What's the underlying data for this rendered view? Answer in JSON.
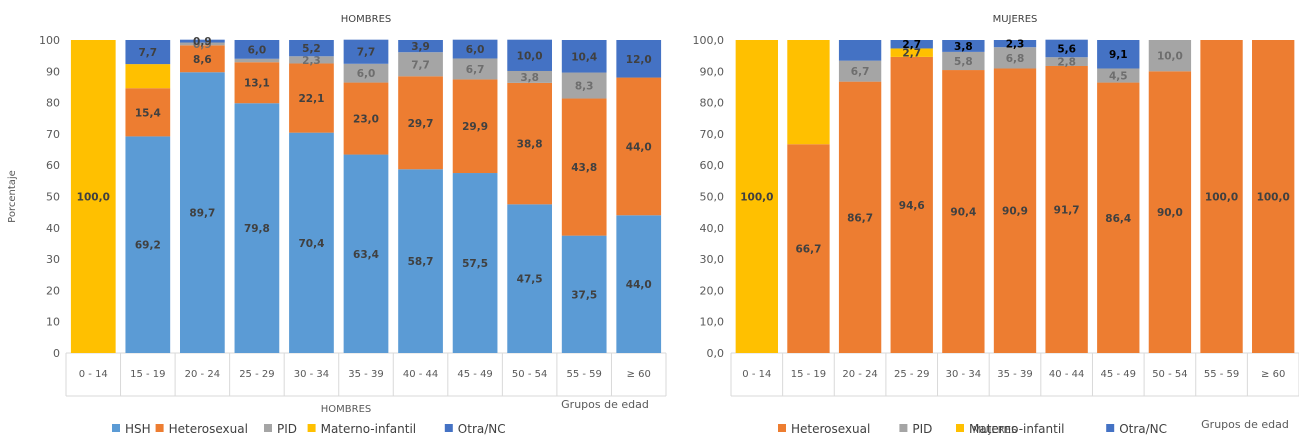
{
  "colors": {
    "HSH": "#5b9bd5",
    "Heterosexual": "#ed7d31",
    "PID": "#a5a5a5",
    "Materno-infantil": "#ffc000",
    "Otra/NC": "#4472c4"
  },
  "chart_data": [
    {
      "type": "bar",
      "stacked": true,
      "title": "HOMBRES",
      "ylabel": "Porcentaje",
      "xlabel": "HOMBRES",
      "x_group_label": "Grupos de edad",
      "ylim": [
        0,
        100
      ],
      "yticks": [
        "0",
        "10",
        "20",
        "30",
        "40",
        "50",
        "60",
        "70",
        "80",
        "90",
        "100"
      ],
      "legend_position": "bottom",
      "categories": [
        "0 - 14",
        "15 - 19",
        "20 - 24",
        "25 - 29",
        "30 - 34",
        "35 - 39",
        "40 - 44",
        "45 - 49",
        "50 - 54",
        "55 - 59",
        "≥ 60"
      ],
      "series": [
        {
          "name": "HSH",
          "values": [
            0,
            69.2,
            89.7,
            79.8,
            70.4,
            63.4,
            58.7,
            57.5,
            47.5,
            37.5,
            44.0
          ],
          "labels": [
            "",
            "69,2",
            "89,7",
            "79,8",
            "70,4",
            "63,4",
            "58,7",
            "57,5",
            "47,5",
            "37,5",
            "44,0"
          ]
        },
        {
          "name": "Heterosexual",
          "values": [
            0,
            15.4,
            8.6,
            13.1,
            22.1,
            23.0,
            29.7,
            29.9,
            38.8,
            43.8,
            44.0
          ],
          "labels": [
            "",
            "15,4",
            "8,6",
            "13,1",
            "22,1",
            "23,0",
            "29,7",
            "29,9",
            "38,8",
            "43,8",
            "44,0"
          ]
        },
        {
          "name": "PID",
          "values": [
            0,
            0,
            0.9,
            1.1,
            2.3,
            6.0,
            7.7,
            6.7,
            3.8,
            8.3,
            0
          ],
          "labels": [
            "",
            "",
            "0,9",
            "",
            "2,3",
            "6,0",
            "7,7",
            "6,7",
            "3,8",
            "8,3",
            ""
          ]
        },
        {
          "name": "Materno-infantil",
          "values": [
            100.0,
            7.7,
            0,
            0,
            0,
            0,
            0,
            0,
            0,
            0,
            0
          ],
          "labels": [
            "100,0",
            "",
            "",
            "",
            "",
            "",
            "",
            "",
            "",
            "",
            ""
          ]
        },
        {
          "name": "Otra/NC",
          "values": [
            0,
            7.7,
            0.9,
            6.0,
            5.2,
            7.7,
            3.9,
            6.0,
            10.0,
            10.4,
            12.0
          ],
          "labels": [
            "",
            "7,7",
            "0,9",
            "6,0",
            "5,2",
            "7,7",
            "3,9",
            "6,0",
            "10,0",
            "10,4",
            "12,0"
          ]
        }
      ]
    },
    {
      "type": "bar",
      "stacked": true,
      "title": "MUJERES",
      "ylabel": "",
      "xlabel": "MUJERES",
      "x_group_label": "Grupos de edad",
      "ylim": [
        0,
        100
      ],
      "yticks": [
        "0,0",
        "10,0",
        "20,0",
        "30,0",
        "40,0",
        "50,0",
        "60,0",
        "70,0",
        "80,0",
        "90,0",
        "100,0"
      ],
      "legend_position": "bottom",
      "categories": [
        "0 - 14",
        "15 - 19",
        "20 - 24",
        "25 - 29",
        "30 - 34",
        "35 - 39",
        "40 - 44",
        "45 - 49",
        "50 - 54",
        "55 - 59",
        "≥ 60"
      ],
      "series": [
        {
          "name": "Heterosexual",
          "values": [
            0,
            66.7,
            86.7,
            94.6,
            90.4,
            90.9,
            91.7,
            86.4,
            90.0,
            100.0,
            100.0
          ],
          "labels": [
            "",
            "66,7",
            "86,7",
            "94,6",
            "90,4",
            "90,9",
            "91,7",
            "86,4",
            "90,0",
            "100,0",
            "100,0"
          ]
        },
        {
          "name": "PID",
          "values": [
            0,
            0,
            6.7,
            0,
            5.8,
            6.8,
            2.8,
            4.5,
            10.0,
            0,
            0
          ],
          "labels": [
            "",
            "",
            "6,7",
            "",
            "5,8",
            "6,8",
            "2,8",
            "4,5",
            "10,0",
            "",
            ""
          ]
        },
        {
          "name": "Materno-infantil",
          "values": [
            100.0,
            33.3,
            0,
            2.7,
            0,
            0,
            0,
            0,
            0,
            0,
            0
          ],
          "labels": [
            "100,0",
            "",
            "",
            "2,7",
            "",
            "",
            "",
            "",
            "",
            "",
            ""
          ]
        },
        {
          "name": "Otra/NC",
          "values": [
            0,
            0,
            6.6,
            2.7,
            3.8,
            2.3,
            5.6,
            9.1,
            0,
            0,
            0
          ],
          "labels": [
            "",
            "",
            "",
            "2,7",
            "3,8",
            "2,3",
            "5,6",
            "9,1",
            "",
            "",
            ""
          ]
        }
      ]
    }
  ]
}
